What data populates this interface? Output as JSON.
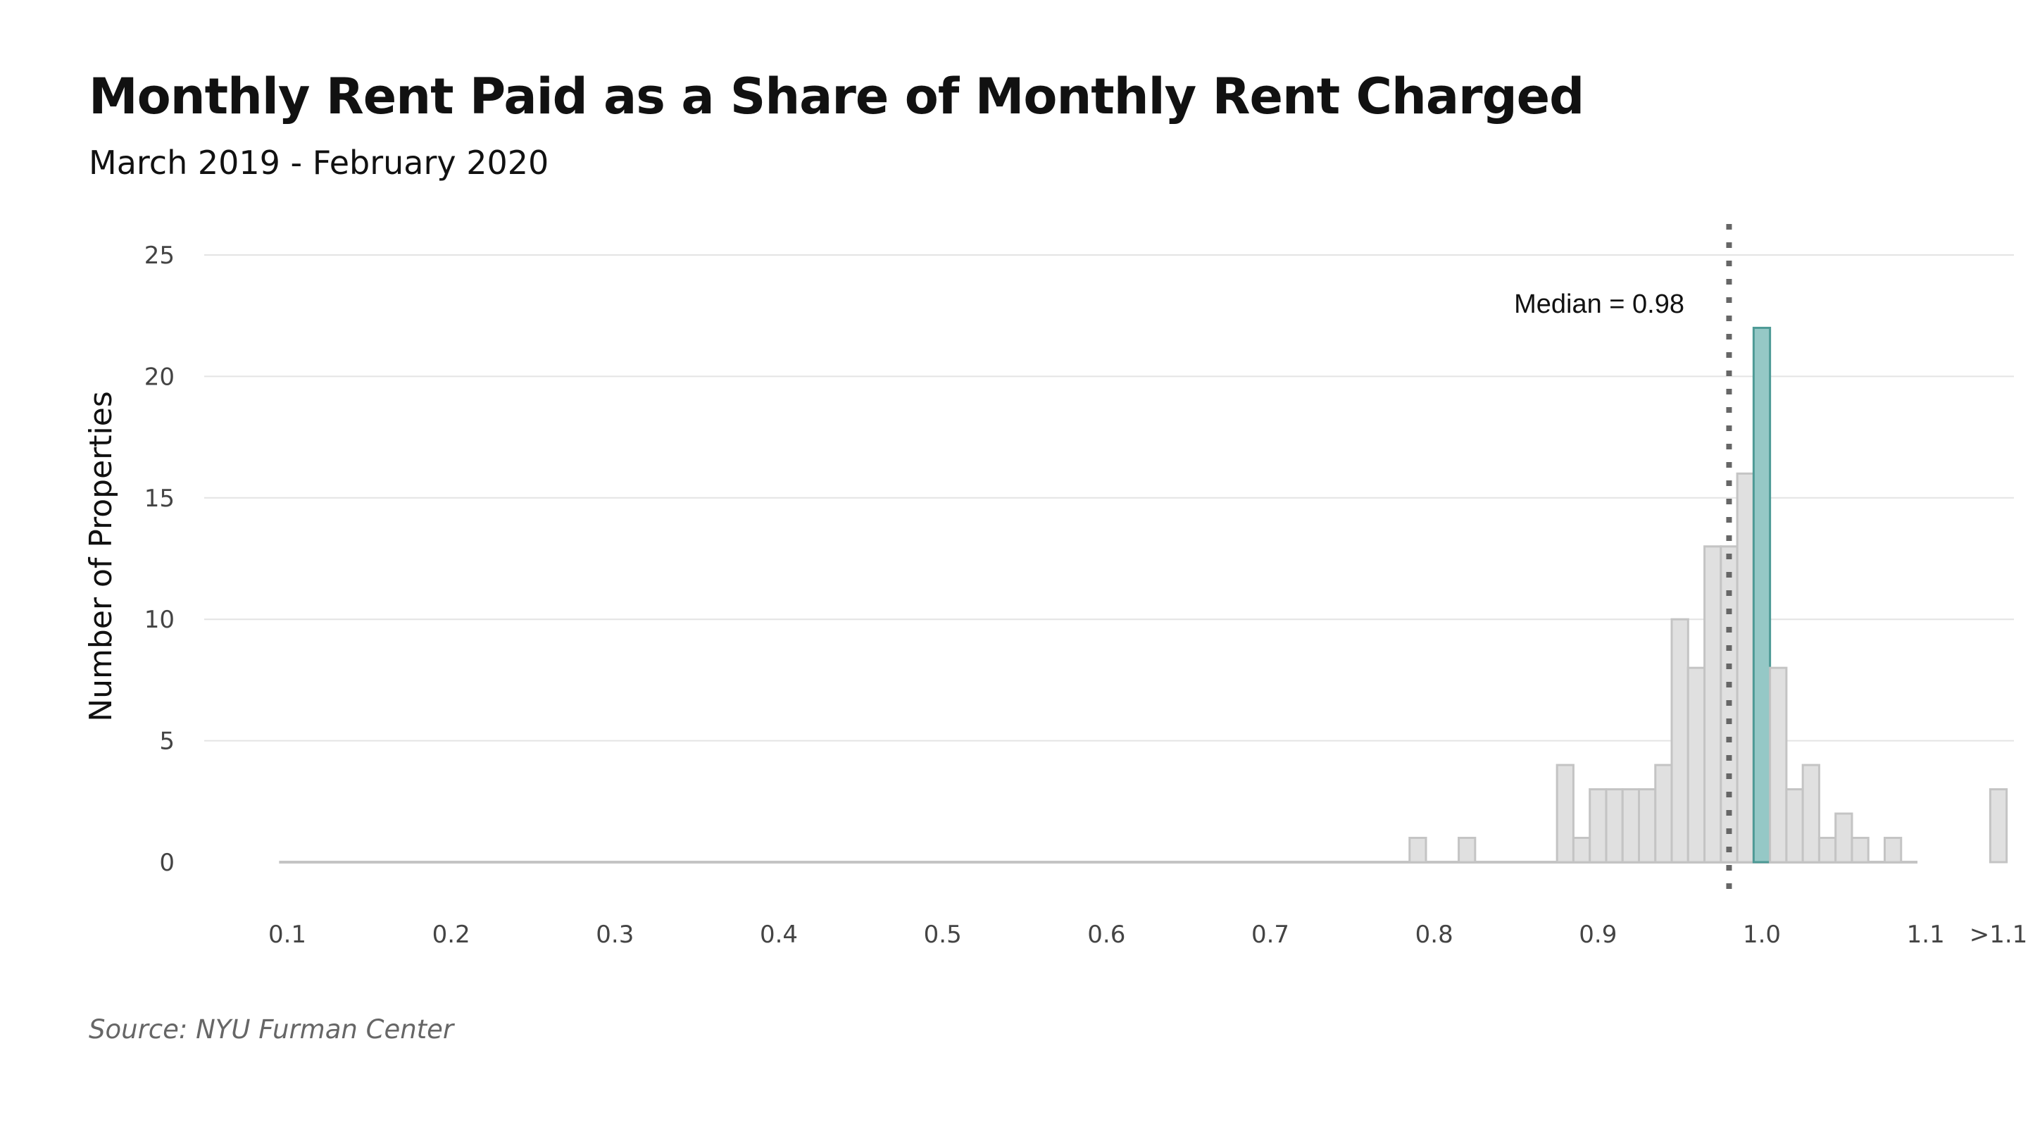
{
  "header": {
    "title": "Monthly Rent Paid as a Share of Monthly Rent Charged",
    "subtitle": "March 2019 - February 2020"
  },
  "footer": {
    "source": "Source: NYU Furman Center"
  },
  "chart_data": {
    "type": "bar",
    "title": "Monthly Rent Paid as a Share of Monthly Rent Charged",
    "subtitle": "March 2019 - February 2020",
    "ylabel": "Number of Properties",
    "xlabel": "",
    "x_ticks": [
      "0.1",
      "0.2",
      "0.3",
      "0.4",
      "0.5",
      "0.6",
      "0.7",
      "0.8",
      "0.9",
      "1.0",
      "1.1",
      ">1.1"
    ],
    "y_ticks": [
      0,
      5,
      10,
      15,
      20,
      25
    ],
    "xlim": [
      0.05,
      1.155
    ],
    "ylim": [
      0,
      25
    ],
    "grid": true,
    "bin_width": 0.01,
    "bins": [
      {
        "x": 0.79,
        "value": 1
      },
      {
        "x": 0.82,
        "value": 1
      },
      {
        "x": 0.88,
        "value": 4
      },
      {
        "x": 0.89,
        "value": 1
      },
      {
        "x": 0.9,
        "value": 3
      },
      {
        "x": 0.91,
        "value": 3
      },
      {
        "x": 0.92,
        "value": 3
      },
      {
        "x": 0.93,
        "value": 3
      },
      {
        "x": 0.94,
        "value": 4
      },
      {
        "x": 0.95,
        "value": 10
      },
      {
        "x": 0.96,
        "value": 8
      },
      {
        "x": 0.97,
        "value": 13
      },
      {
        "x": 0.98,
        "value": 13
      },
      {
        "x": 0.99,
        "value": 16
      },
      {
        "x": 1.0,
        "value": 22,
        "highlight": true
      },
      {
        "x": 1.01,
        "value": 8
      },
      {
        "x": 1.02,
        "value": 3
      },
      {
        "x": 1.03,
        "value": 4
      },
      {
        "x": 1.04,
        "value": 1
      },
      {
        "x": 1.05,
        "value": 2
      },
      {
        "x": 1.06,
        "value": 1
      },
      {
        "x": 1.08,
        "value": 1
      },
      {
        "x": ">1.1",
        "value": 3
      }
    ],
    "baseline_range": [
      0.1,
      1.09
    ],
    "median": {
      "value": 0.98,
      "label": "Median = 0.98"
    },
    "colors": {
      "bar_fill": "#e0e0e0",
      "bar_stroke": "#c4c4c4",
      "highlight_fill": "#95c8c6",
      "highlight_stroke": "#4e9a96",
      "median_line": "#666666",
      "grid": "#e4e4e4"
    }
  }
}
